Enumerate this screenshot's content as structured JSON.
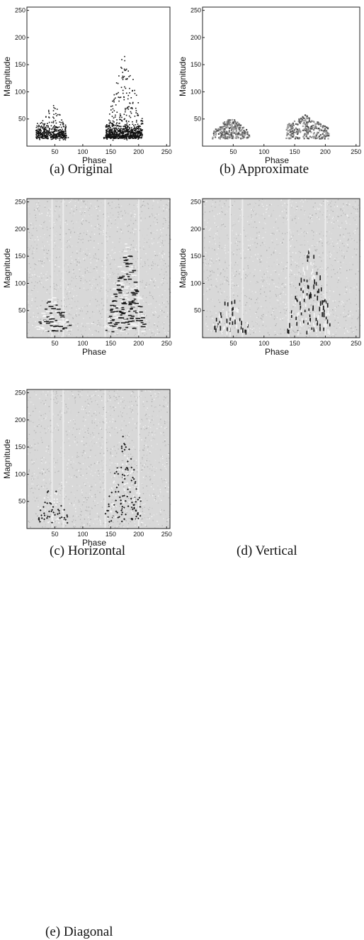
{
  "figure": {
    "panels": [
      {
        "id": "a",
        "caption": "(a) Original",
        "style": "scatter-sparse"
      },
      {
        "id": "b",
        "caption": "(b) Approximate",
        "style": "blur-smooth"
      },
      {
        "id": "c",
        "caption": "(c) Horizontal",
        "style": "texture-horizontal"
      },
      {
        "id": "d",
        "caption": "(d) Vertical",
        "style": "texture-vertical"
      },
      {
        "id": "e",
        "caption": "(e) Diagonal",
        "style": "texture-diagonal"
      }
    ]
  },
  "chart_data": [
    {
      "type": "heatmap",
      "panel": "a",
      "xlabel": "Phase",
      "ylabel": "Magnitude",
      "xlim": [
        0,
        256
      ],
      "ylim": [
        0,
        256
      ],
      "xticks": [
        50,
        100,
        150,
        200,
        250
      ],
      "yticks": [
        50,
        100,
        150,
        200,
        250
      ],
      "grid": false
    },
    {
      "type": "heatmap",
      "panel": "b",
      "xlabel": "Phase",
      "ylabel": "Magnitude",
      "xlim": [
        0,
        256
      ],
      "ylim": [
        0,
        256
      ],
      "xticks": [
        50,
        100,
        150,
        200,
        250
      ],
      "yticks": [
        50,
        100,
        150,
        200,
        250
      ],
      "grid": false
    },
    {
      "type": "heatmap",
      "panel": "c",
      "xlabel": "Phase",
      "ylabel": "Magnitude",
      "xlim": [
        0,
        256
      ],
      "ylim": [
        0,
        256
      ],
      "xticks": [
        50,
        100,
        150,
        200,
        250
      ],
      "yticks": [
        50,
        100,
        150,
        200,
        250
      ],
      "grid": false
    },
    {
      "type": "heatmap",
      "panel": "d",
      "xlabel": "Phase",
      "ylabel": "Magnitude",
      "xlim": [
        0,
        256
      ],
      "ylim": [
        0,
        256
      ],
      "xticks": [
        50,
        100,
        150,
        200,
        250
      ],
      "yticks": [
        50,
        100,
        150,
        200,
        250
      ],
      "grid": false
    },
    {
      "type": "heatmap",
      "panel": "e",
      "xlabel": "Phase",
      "ylabel": "Magnitude",
      "xlim": [
        0,
        256
      ],
      "ylim": [
        0,
        256
      ],
      "xticks": [
        50,
        100,
        150,
        200,
        250
      ],
      "yticks": [
        50,
        100,
        150,
        200,
        250
      ],
      "grid": false
    }
  ]
}
